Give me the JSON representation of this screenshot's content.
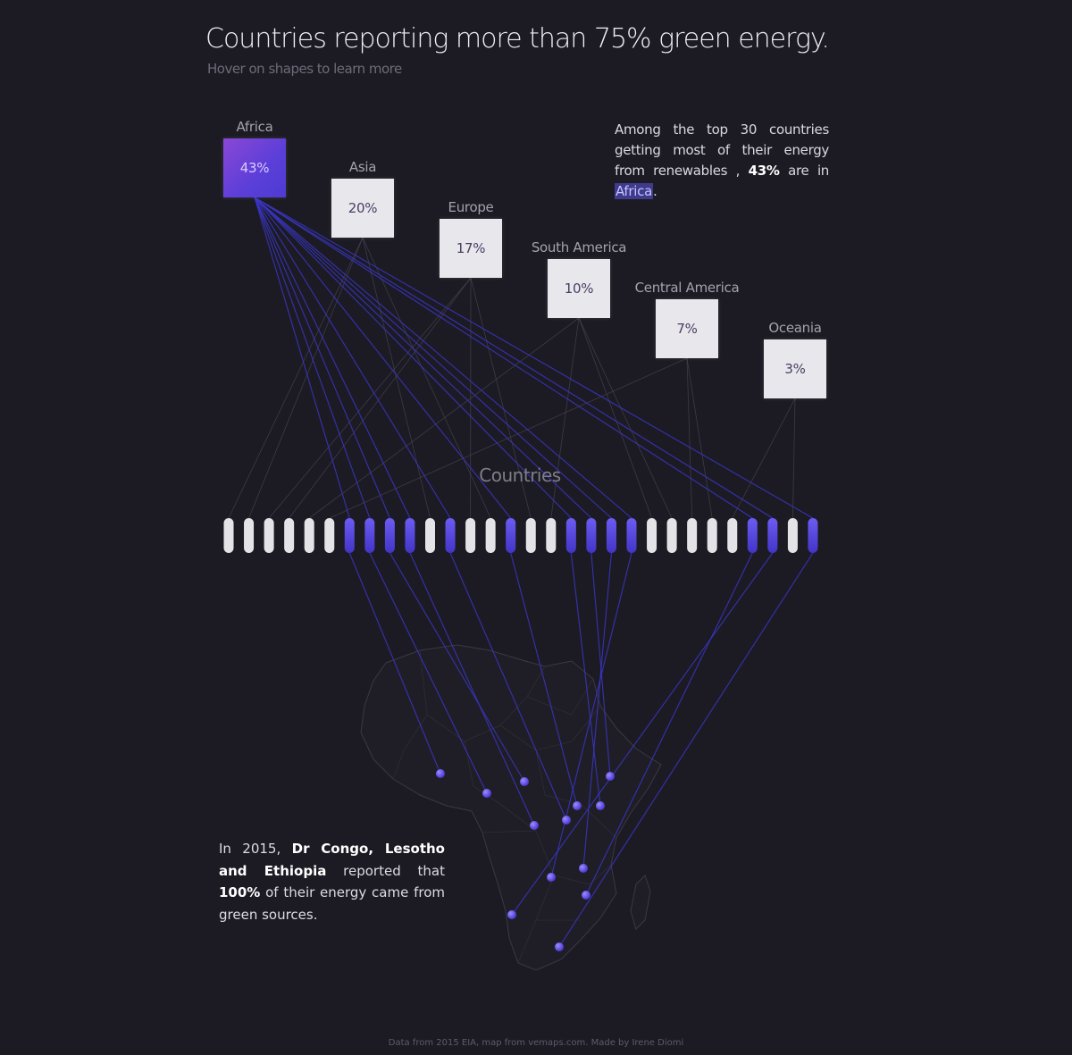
{
  "header": {
    "title": "Countries reporting more than 75% green energy.",
    "subtitle": "Hover on shapes to learn more"
  },
  "continents": [
    {
      "name": "Africa",
      "value_label": "43%",
      "share": 43,
      "highlighted": true
    },
    {
      "name": "Asia",
      "value_label": "20%",
      "share": 20,
      "highlighted": false
    },
    {
      "name": "Europe",
      "value_label": "17%",
      "share": 17,
      "highlighted": false
    },
    {
      "name": "South America",
      "value_label": "10%",
      "share": 10,
      "highlighted": false
    },
    {
      "name": "Central America",
      "value_label": "7%",
      "share": 7,
      "highlighted": false
    },
    {
      "name": "Oceania",
      "value_label": "3%",
      "share": 3,
      "highlighted": false
    }
  ],
  "annotation": {
    "text_1": "Among the top 30 countries getting most of their energy from renewables ,",
    "value": "43%",
    "text_2": "are in",
    "highlight": "Africa",
    "end": "."
  },
  "countries_label": "Countries",
  "countries_pills": [
    "white",
    "white",
    "white",
    "white",
    "white",
    "white",
    "purple",
    "purple",
    "purple",
    "purple",
    "white",
    "purple",
    "white",
    "white",
    "purple",
    "white",
    "white",
    "purple",
    "purple",
    "purple",
    "purple",
    "white",
    "white",
    "white",
    "white",
    "white",
    "purple",
    "purple",
    "white",
    "purple"
  ],
  "note": {
    "prefix": "In 2015,",
    "bold_1": "Dr Congo, Lesotho and Ethiopia",
    "mid": "reported that",
    "bold_2": "100%",
    "suffix": "of their energy came from green sources."
  },
  "footer": "Data from 2015 EIA, map from vemaps.com.    Made by  Irene Diomi",
  "colors": {
    "background": "#1c1b24",
    "accent": "#5b4ee6",
    "box": "#e8e8ec",
    "link_highlight": "#3b36c9",
    "link_muted": "#3c3b44"
  }
}
